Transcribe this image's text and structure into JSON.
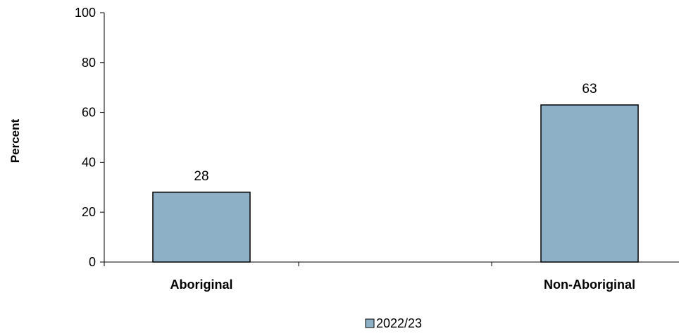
{
  "chart_data": {
    "type": "bar",
    "title": "",
    "xlabel": "",
    "ylabel": "Percent",
    "categories": [
      "Aboriginal",
      "Non-Aboriginal"
    ],
    "series": [
      {
        "name": "2022/23",
        "values": [
          28,
          63
        ],
        "color": "#8eb0c6"
      }
    ],
    "data_labels": [
      "28",
      "63"
    ],
    "ylim": [
      0,
      100
    ],
    "yticks": [
      0,
      20,
      40,
      60,
      80,
      100
    ],
    "grid": false,
    "legend_position": "bottom-center"
  }
}
